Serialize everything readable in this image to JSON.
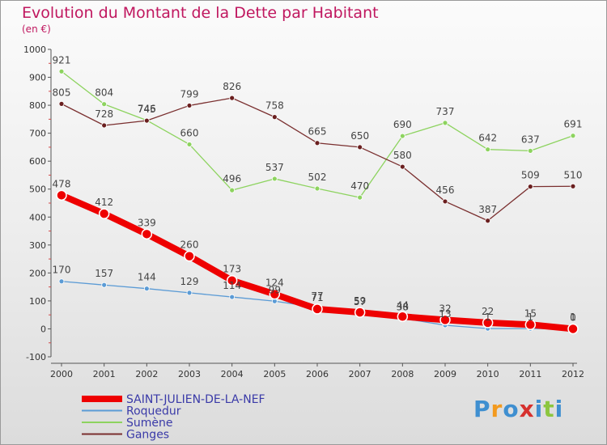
{
  "title": "Evolution du Montant de la Dette par Habitant",
  "subtitle": "(en €)",
  "logo": {
    "text": "Proxiti",
    "colors": [
      "#3f8fd0",
      "#f39a1e",
      "#3f8fd0",
      "#d6312e",
      "#3f8fd0",
      "#8cc63f",
      "#3f8fd0"
    ]
  },
  "chart_data": {
    "type": "line",
    "categories": [
      "2000",
      "2001",
      "2002",
      "2003",
      "2004",
      "2005",
      "2006",
      "2007",
      "2008",
      "2009",
      "2010",
      "2011",
      "2012"
    ],
    "ylim": [
      -100,
      1000
    ],
    "yticks": [
      -100,
      0,
      100,
      200,
      300,
      400,
      500,
      600,
      700,
      800,
      900,
      1000
    ],
    "grid": false,
    "legend_position": "bottom-left",
    "series": [
      {
        "name": "SAINT-JULIEN-DE-LA-NEF",
        "color": "#ee0000",
        "width": 8,
        "marker_fill": "#ee0000",
        "marker_r": 6,
        "values": [
          478,
          412,
          339,
          260,
          173,
          124,
          71,
          59,
          44,
          32,
          22,
          15,
          0
        ],
        "labels": [
          "478",
          "412",
          "339",
          "260",
          "173",
          "124",
          "71",
          "59",
          "44",
          "32",
          "22",
          "15",
          "0"
        ]
      },
      {
        "name": "Roquedur",
        "color": "#5b9bd5",
        "width": 1.3,
        "marker_fill": "#5b9bd5",
        "marker_r": 3,
        "values": [
          170,
          157,
          144,
          129,
          114,
          99,
          77,
          57,
          38,
          13,
          1,
          1,
          1
        ],
        "labels": [
          "170",
          "157",
          "144",
          "129",
          "114",
          "99",
          "77",
          "57",
          "38",
          "13",
          "1",
          "1",
          "1"
        ]
      },
      {
        "name": "Sumène",
        "color": "#8dd35f",
        "width": 1.3,
        "marker_fill": "#8dd35f",
        "marker_r": 3,
        "values": [
          921,
          804,
          746,
          660,
          496,
          537,
          502,
          470,
          690,
          737,
          642,
          637,
          691
        ],
        "labels": [
          "921",
          "804",
          "746",
          "660",
          "496",
          "537",
          "502",
          "470",
          "690",
          "737",
          "642",
          "637",
          "691"
        ]
      },
      {
        "name": "Ganges",
        "color": "#7a2f2f",
        "width": 1.3,
        "marker_fill": "#6a1f1f",
        "marker_r": 3,
        "values": [
          805,
          728,
          745,
          799,
          826,
          758,
          665,
          650,
          580,
          456,
          387,
          509,
          510
        ],
        "labels": [
          "805",
          "728",
          "745",
          "799",
          "826",
          "758",
          "665",
          "650",
          "580",
          "456",
          "387",
          "509",
          "510"
        ]
      }
    ]
  }
}
